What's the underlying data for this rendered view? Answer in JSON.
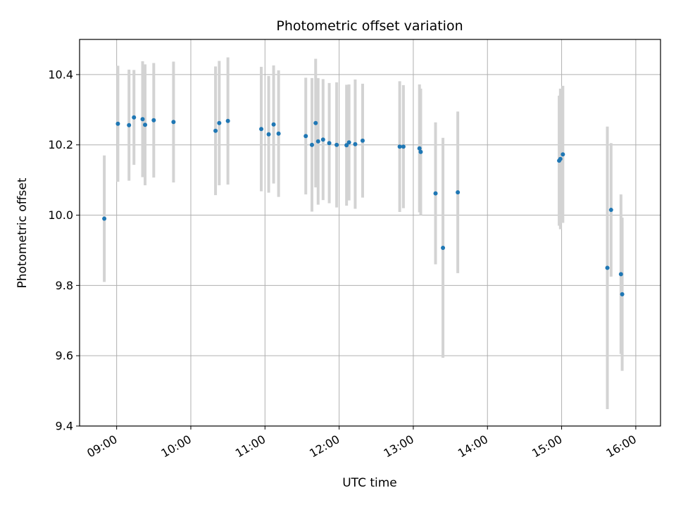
{
  "chart_data": {
    "type": "scatter",
    "title": "Photometric offset variation",
    "xlabel": "UTC time",
    "ylabel": "Photometric offset",
    "xlim": [
      "08:30",
      "16:20"
    ],
    "ylim": [
      9.4,
      10.5
    ],
    "grid": true,
    "x_ticks": [
      "09:00",
      "10:00",
      "11:00",
      "12:00",
      "13:00",
      "14:00",
      "15:00",
      "16:00"
    ],
    "y_ticks": [
      "9.4",
      "9.6",
      "9.8",
      "10.0",
      "10.2",
      "10.4"
    ],
    "colors": {
      "point": "#1f77b4",
      "errorbar": "#d3d3d3",
      "grid": "#b0b0b0"
    },
    "points": [
      {
        "x": "08:50",
        "y": 9.99,
        "err": 0.18
      },
      {
        "x": "09:01",
        "y": 10.26,
        "err": 0.165
      },
      {
        "x": "09:10",
        "y": 10.256,
        "err": 0.158
      },
      {
        "x": "09:14",
        "y": 10.278,
        "err": 0.135
      },
      {
        "x": "09:21",
        "y": 10.273,
        "err": 0.165
      },
      {
        "x": "09:23",
        "y": 10.257,
        "err": 0.172
      },
      {
        "x": "09:30",
        "y": 10.27,
        "err": 0.163
      },
      {
        "x": "09:46",
        "y": 10.265,
        "err": 0.172
      },
      {
        "x": "10:20",
        "y": 10.24,
        "err": 0.183
      },
      {
        "x": "10:23",
        "y": 10.262,
        "err": 0.177
      },
      {
        "x": "10:30",
        "y": 10.268,
        "err": 0.181
      },
      {
        "x": "10:57",
        "y": 10.245,
        "err": 0.177
      },
      {
        "x": "11:03",
        "y": 10.23,
        "err": 0.166
      },
      {
        "x": "11:07",
        "y": 10.258,
        "err": 0.168
      },
      {
        "x": "11:11",
        "y": 10.232,
        "err": 0.18
      },
      {
        "x": "11:33",
        "y": 10.225,
        "err": 0.166
      },
      {
        "x": "11:38",
        "y": 10.2,
        "err": 0.19
      },
      {
        "x": "11:41",
        "y": 10.262,
        "err": 0.183
      },
      {
        "x": "11:43",
        "y": 10.21,
        "err": 0.18
      },
      {
        "x": "11:47",
        "y": 10.215,
        "err": 0.172
      },
      {
        "x": "11:52",
        "y": 10.205,
        "err": 0.171
      },
      {
        "x": "11:58",
        "y": 10.2,
        "err": 0.178
      },
      {
        "x": "12:06",
        "y": 10.199,
        "err": 0.172
      },
      {
        "x": "12:08",
        "y": 10.207,
        "err": 0.165
      },
      {
        "x": "12:13",
        "y": 10.202,
        "err": 0.184
      },
      {
        "x": "12:19",
        "y": 10.212,
        "err": 0.162
      },
      {
        "x": "12:49",
        "y": 10.195,
        "err": 0.186
      },
      {
        "x": "12:52",
        "y": 10.195,
        "err": 0.175
      },
      {
        "x": "13:05",
        "y": 10.19,
        "err": 0.182
      },
      {
        "x": "13:06",
        "y": 10.18,
        "err": 0.18
      },
      {
        "x": "13:18",
        "y": 10.062,
        "err": 0.202
      },
      {
        "x": "13:24",
        "y": 9.907,
        "err": 0.313
      },
      {
        "x": "13:36",
        "y": 10.065,
        "err": 0.23
      },
      {
        "x": "14:58",
        "y": 10.155,
        "err": 0.185
      },
      {
        "x": "14:59",
        "y": 10.16,
        "err": 0.2
      },
      {
        "x": "15:01",
        "y": 10.173,
        "err": 0.195
      },
      {
        "x": "15:37",
        "y": 9.85,
        "err": 0.402
      },
      {
        "x": "15:40",
        "y": 10.015,
        "err": 0.19
      },
      {
        "x": "15:48",
        "y": 9.832,
        "err": 0.227
      },
      {
        "x": "15:49",
        "y": 9.775,
        "err": 0.218
      }
    ]
  }
}
